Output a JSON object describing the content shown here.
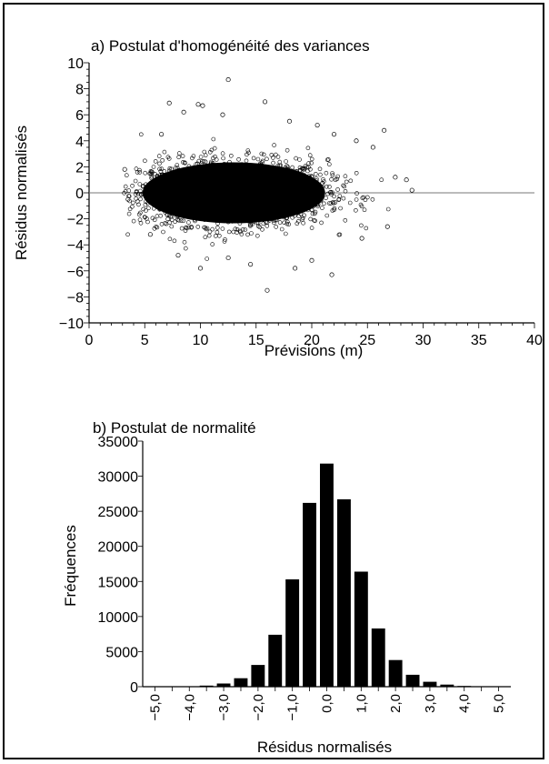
{
  "chart_data": [
    {
      "type": "scatter",
      "title": "a) Postulat d'homogénéité des variances",
      "xlabel": "Prévisions (m)",
      "ylabel": "Résidus normalisés",
      "xlim": [
        0,
        40
      ],
      "ylim": [
        -10,
        10
      ],
      "x_ticks": [
        "0",
        "5",
        "10",
        "15",
        "20",
        "25",
        "30",
        "35",
        "40"
      ],
      "y_ticks": [
        "10",
        "8",
        "6",
        "4",
        "2",
        "0",
        "−2",
        "−4",
        "−6",
        "−8",
        "−10"
      ],
      "reference_line_y": 0,
      "marker": "open circle",
      "dense_region": {
        "x_center": 13,
        "x_halfwidth": 10,
        "y_halfwidth": 3
      },
      "outliers": [
        {
          "x": 12.5,
          "y": 8.7
        },
        {
          "x": 7.2,
          "y": 6.9
        },
        {
          "x": 15.8,
          "y": 7.0
        },
        {
          "x": 9.8,
          "y": 6.8
        },
        {
          "x": 10.2,
          "y": 6.7
        },
        {
          "x": 8.5,
          "y": 6.2
        },
        {
          "x": 12.0,
          "y": 6.0
        },
        {
          "x": 18.0,
          "y": 5.5
        },
        {
          "x": 20.5,
          "y": 5.2
        },
        {
          "x": 26.5,
          "y": 4.8
        },
        {
          "x": 22.0,
          "y": 4.5
        },
        {
          "x": 6.5,
          "y": 4.5
        },
        {
          "x": 24.0,
          "y": 4.0
        },
        {
          "x": 25.5,
          "y": 3.5
        },
        {
          "x": 28.5,
          "y": 1.0
        },
        {
          "x": 27.5,
          "y": 1.2
        },
        {
          "x": 29.0,
          "y": 0.2
        },
        {
          "x": 3.2,
          "y": 1.8
        },
        {
          "x": 3.5,
          "y": -0.5
        },
        {
          "x": 26.8,
          "y": -2.6
        },
        {
          "x": 10.0,
          "y": -5.8
        },
        {
          "x": 21.8,
          "y": -6.3
        },
        {
          "x": 16.0,
          "y": -7.5
        },
        {
          "x": 14.5,
          "y": -5.5
        },
        {
          "x": 18.5,
          "y": -5.8
        },
        {
          "x": 8.0,
          "y": -4.8
        },
        {
          "x": 12.5,
          "y": -5.0
        },
        {
          "x": 24.5,
          "y": -3.5
        },
        {
          "x": 5.5,
          "y": -3.2
        },
        {
          "x": 20.0,
          "y": -5.2
        }
      ]
    },
    {
      "type": "bar",
      "title": "b) Postulat de normalité",
      "xlabel": "Résidus normalisés",
      "ylabel": "Fréquences",
      "ylim": [
        0,
        35000
      ],
      "y_ticks": [
        "35000",
        "30000",
        "25000",
        "20000",
        "15000",
        "10000",
        "5000",
        "0"
      ],
      "x_ticks": [
        "−5,0",
        "−4,0",
        "−3,0",
        "−2,0",
        "−1,0",
        "0,0",
        "1,0",
        "2,0",
        "3,0",
        "4,0",
        "5,0"
      ],
      "bin_width": 0.5,
      "bin_centers": [
        -5.0,
        -4.5,
        -4.0,
        -3.5,
        -3.0,
        -2.5,
        -2.0,
        -1.5,
        -1.0,
        -0.5,
        0.0,
        0.5,
        1.0,
        1.5,
        2.0,
        2.5,
        3.0,
        3.5,
        4.0,
        4.5,
        5.0
      ],
      "values": [
        0,
        0,
        50,
        150,
        450,
        1200,
        3100,
        7400,
        15300,
        26200,
        31800,
        26700,
        16400,
        8300,
        3800,
        1700,
        700,
        300,
        100,
        50,
        0
      ]
    }
  ]
}
